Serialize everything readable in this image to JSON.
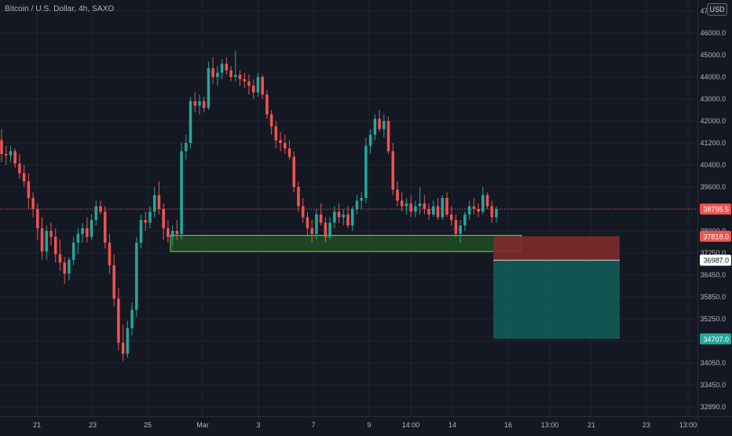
{
  "header": {
    "title": "Bitcoin / U.S. Dollar, 4h, SAXO",
    "currency_button": "USD"
  },
  "colors": {
    "background": "#141823",
    "grid": "#1f2330",
    "axis_text": "#b2b5be",
    "up": "#26a69a",
    "down": "#ef5350",
    "price_line": "#ef5350",
    "zone_fill": "#1e4d26",
    "zone_border": "#9acd32",
    "stop_fill": "#7e2a2a",
    "target_fill": "#0f5c56"
  },
  "chart_data": {
    "type": "candlestick",
    "title": "Bitcoin / U.S. Dollar, 4h, SAXO",
    "ylim": [
      32300,
      48300
    ],
    "y_ticks": [
      "47000.0",
      "46000.0",
      "45000.0",
      "44000.0",
      "43000.0",
      "42000.0",
      "41200.0",
      "40400.0",
      "39600.0",
      "38800.0",
      "38000.0",
      "37250.0",
      "36450.0",
      "35850.0",
      "35250.0",
      "34650.0",
      "34050.0",
      "33450.0",
      "32890.0"
    ],
    "x_ticks": [
      "21",
      "23",
      "25",
      "Mar",
      "3",
      "7",
      "9",
      "14:00",
      "14",
      "16",
      "13:00",
      "21",
      "23",
      "13:00"
    ],
    "grid": true,
    "current_price": {
      "label": "38795.5",
      "value": 38795.5
    },
    "price_labels": [
      {
        "label": "37818.0",
        "value": 37818,
        "kind": "stop"
      },
      {
        "label": "36987.0",
        "value": 36987,
        "kind": "entry"
      },
      {
        "label": "34707.0",
        "value": 34707,
        "kind": "target"
      }
    ],
    "demand_zone": {
      "x_start": 0,
      "x_end": 1.18,
      "top": 37850,
      "bottom": 37300
    },
    "position": {
      "x_start": 1.0,
      "x_end": 1.4,
      "stop": 37818,
      "entry": 36987,
      "target": 34707
    },
    "candles": [
      [
        41300,
        41700,
        40500,
        40800
      ],
      [
        40800,
        41100,
        40400,
        40750
      ],
      [
        40750,
        41100,
        40500,
        40900
      ],
      [
        40900,
        41000,
        40300,
        40450
      ],
      [
        40450,
        40800,
        39900,
        40100
      ],
      [
        40100,
        40400,
        39600,
        39800
      ],
      [
        39800,
        40100,
        38800,
        39200
      ],
      [
        39200,
        39400,
        38500,
        38800
      ],
      [
        38800,
        39000,
        37700,
        38100
      ],
      [
        38100,
        38500,
        37000,
        37300
      ],
      [
        37300,
        38200,
        37000,
        38000
      ],
      [
        38000,
        38300,
        37500,
        37800
      ],
      [
        37800,
        38100,
        36900,
        37200
      ],
      [
        37200,
        37700,
        36600,
        36900
      ],
      [
        36900,
        37100,
        36200,
        36500
      ],
      [
        36500,
        37100,
        36300,
        37000
      ],
      [
        37000,
        37800,
        36800,
        37600
      ],
      [
        37600,
        38100,
        37200,
        37900
      ],
      [
        37900,
        38300,
        37600,
        38100
      ],
      [
        38100,
        38500,
        37600,
        37800
      ],
      [
        37800,
        38600,
        37700,
        38400
      ],
      [
        38400,
        39100,
        38200,
        38900
      ],
      [
        38900,
        39100,
        38600,
        38700
      ],
      [
        38700,
        38900,
        37400,
        37600
      ],
      [
        37600,
        37900,
        36500,
        36800
      ],
      [
        36800,
        37200,
        35600,
        35800
      ],
      [
        35800,
        36100,
        34400,
        34600
      ],
      [
        34600,
        35100,
        34100,
        34300
      ],
      [
        34300,
        35200,
        34200,
        35000
      ],
      [
        35000,
        35700,
        34800,
        35500
      ],
      [
        35500,
        37800,
        35300,
        37600
      ],
      [
        37600,
        38600,
        37400,
        38400
      ],
      [
        38400,
        38700,
        38000,
        38300
      ],
      [
        38300,
        38900,
        38100,
        38700
      ],
      [
        38700,
        39600,
        38500,
        39300
      ],
      [
        39300,
        39800,
        38600,
        38800
      ],
      [
        38800,
        39000,
        37700,
        38100
      ],
      [
        38100,
        38400,
        37600,
        37800
      ],
      [
        37800,
        38200,
        37500,
        38000
      ],
      [
        38000,
        38400,
        37700,
        37900
      ],
      [
        37900,
        41200,
        37700,
        40900
      ],
      [
        40900,
        41500,
        40600,
        41200
      ],
      [
        41200,
        43100,
        41000,
        42900
      ],
      [
        42900,
        43300,
        42400,
        42700
      ],
      [
        42700,
        43200,
        42300,
        42900
      ],
      [
        42900,
        43100,
        42400,
        42600
      ],
      [
        42600,
        44700,
        42500,
        44400
      ],
      [
        44400,
        44900,
        43700,
        44000
      ],
      [
        44000,
        44500,
        43600,
        44200
      ],
      [
        44200,
        44800,
        43900,
        44600
      ],
      [
        44600,
        44900,
        44100,
        44300
      ],
      [
        44300,
        44500,
        43800,
        44000
      ],
      [
        44000,
        45200,
        43800,
        44100
      ],
      [
        44100,
        44300,
        43600,
        43900
      ],
      [
        43900,
        44200,
        43500,
        43800
      ],
      [
        43800,
        44100,
        43200,
        43600
      ],
      [
        43600,
        43900,
        43000,
        43300
      ],
      [
        43300,
        44200,
        43100,
        44000
      ],
      [
        44000,
        44100,
        43000,
        43200
      ],
      [
        43200,
        43400,
        42100,
        42300
      ],
      [
        42300,
        42500,
        41500,
        41800
      ],
      [
        41800,
        42000,
        41000,
        41300
      ],
      [
        41300,
        41600,
        40900,
        41200
      ],
      [
        41200,
        41500,
        40800,
        41000
      ],
      [
        41000,
        41300,
        40600,
        40700
      ],
      [
        40700,
        40900,
        39400,
        39600
      ],
      [
        39600,
        39800,
        38700,
        38900
      ],
      [
        38900,
        39200,
        38300,
        38500
      ],
      [
        38500,
        38700,
        37800,
        38100
      ],
      [
        38100,
        38400,
        37600,
        37900
      ],
      [
        37900,
        38800,
        37700,
        38600
      ],
      [
        38600,
        39000,
        38200,
        38300
      ],
      [
        38300,
        38500,
        37600,
        37800
      ],
      [
        37800,
        38500,
        37700,
        38300
      ],
      [
        38300,
        38900,
        38100,
        38700
      ],
      [
        38700,
        39000,
        38300,
        38500
      ],
      [
        38500,
        38800,
        38200,
        38600
      ],
      [
        38600,
        38900,
        38100,
        38200
      ],
      [
        38200,
        38900,
        38000,
        38800
      ],
      [
        38800,
        39300,
        38600,
        39100
      ],
      [
        39100,
        39400,
        38800,
        39200
      ],
      [
        39200,
        41400,
        39000,
        41100
      ],
      [
        41100,
        41700,
        40800,
        41500
      ],
      [
        41500,
        42300,
        41300,
        42100
      ],
      [
        42100,
        42500,
        41600,
        41700
      ],
      [
        41700,
        42300,
        41400,
        42000
      ],
      [
        42000,
        42200,
        40800,
        40900
      ],
      [
        40900,
        41200,
        39300,
        39500
      ],
      [
        39500,
        39800,
        38900,
        39100
      ],
      [
        39100,
        39400,
        38700,
        38900
      ],
      [
        38900,
        39200,
        38600,
        39000
      ],
      [
        39000,
        39300,
        38500,
        38700
      ],
      [
        38700,
        39100,
        38500,
        38900
      ],
      [
        38900,
        39600,
        38600,
        39000
      ],
      [
        39000,
        39300,
        38600,
        38800
      ],
      [
        38800,
        39000,
        38400,
        38600
      ],
      [
        38600,
        39100,
        38500,
        38900
      ],
      [
        38900,
        39200,
        38400,
        38500
      ],
      [
        38500,
        39300,
        38400,
        39200
      ],
      [
        39200,
        39400,
        38500,
        38600
      ],
      [
        38600,
        38900,
        38200,
        38400
      ],
      [
        38400,
        38600,
        37800,
        37900
      ],
      [
        37900,
        38400,
        37600,
        38200
      ],
      [
        38200,
        38700,
        38000,
        38600
      ],
      [
        38600,
        39100,
        38400,
        38900
      ],
      [
        38900,
        39200,
        38600,
        38800
      ],
      [
        38800,
        39000,
        38500,
        38700
      ],
      [
        38700,
        39600,
        38600,
        39300
      ],
      [
        39300,
        39400,
        38800,
        38900
      ],
      [
        38900,
        39100,
        38300,
        38500
      ],
      [
        38500,
        38900,
        38300,
        38800
      ]
    ]
  }
}
